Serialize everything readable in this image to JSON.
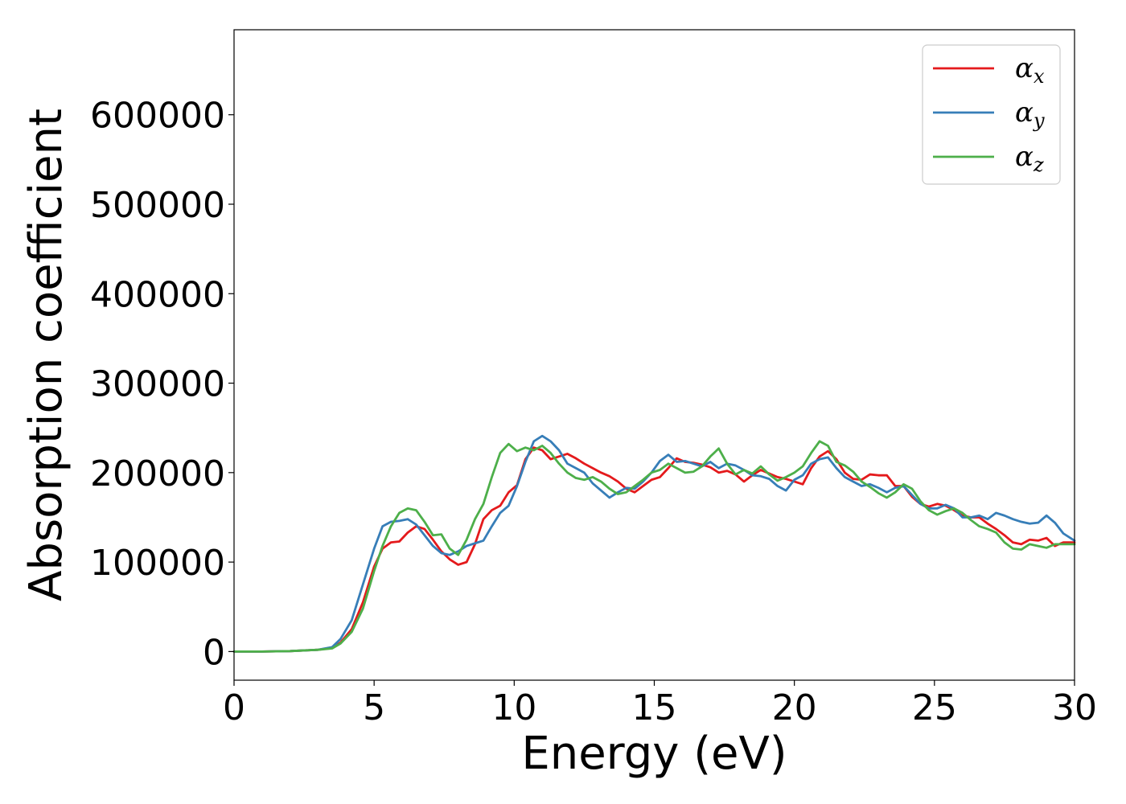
{
  "chart_data": {
    "type": "line",
    "title": "",
    "xlabel": "Energy (eV)",
    "ylabel": "Absorption coefficient",
    "xlim": [
      0,
      30
    ],
    "ylim": [
      -32000,
      695000
    ],
    "xticks": [
      "0",
      "5",
      "10",
      "15",
      "20",
      "25",
      "30"
    ],
    "yticks": [
      "0",
      "100000",
      "200000",
      "300000",
      "400000",
      "500000",
      "600000"
    ],
    "grid": false,
    "legend_position": "top-right",
    "series": [
      {
        "name": "α",
        "subscript": "x",
        "color": "#e41a1c",
        "x": [
          0,
          1,
          2,
          3,
          3.5,
          3.8,
          4.2,
          4.6,
          5.0,
          5.3,
          5.6,
          5.9,
          6.2,
          6.5,
          6.8,
          7.1,
          7.4,
          7.7,
          8.0,
          8.3,
          8.6,
          8.9,
          9.2,
          9.5,
          9.8,
          10.1,
          10.4,
          10.7,
          11.0,
          11.3,
          11.6,
          11.9,
          12.2,
          12.5,
          12.8,
          13.1,
          13.4,
          13.7,
          14.0,
          14.3,
          14.6,
          14.9,
          15.2,
          15.5,
          15.8,
          16.1,
          16.4,
          16.7,
          17.0,
          17.3,
          17.6,
          17.9,
          18.2,
          18.5,
          18.8,
          19.1,
          19.4,
          19.7,
          20.0,
          20.3,
          20.6,
          20.9,
          21.2,
          21.5,
          21.8,
          22.1,
          22.4,
          22.7,
          23.0,
          23.3,
          23.6,
          23.9,
          24.2,
          24.5,
          24.8,
          25.1,
          25.4,
          25.7,
          26.0,
          26.3,
          26.6,
          26.9,
          27.2,
          27.5,
          27.8,
          28.1,
          28.4,
          28.7,
          29.0,
          29.3,
          29.6,
          30.0
        ],
        "y": [
          0,
          0,
          500,
          2000,
          4000,
          10000,
          25000,
          55000,
          95000,
          115000,
          122000,
          123000,
          133000,
          140000,
          137000,
          125000,
          112000,
          103000,
          97000,
          100000,
          120000,
          148000,
          158000,
          163000,
          178000,
          186000,
          215000,
          228000,
          225000,
          215000,
          218000,
          221000,
          216000,
          210000,
          205000,
          200000,
          196000,
          190000,
          182000,
          178000,
          185000,
          192000,
          195000,
          205000,
          216000,
          212000,
          211000,
          209000,
          206000,
          200000,
          202000,
          198000,
          190000,
          197000,
          203000,
          199000,
          195000,
          193000,
          190000,
          187000,
          205000,
          218000,
          224000,
          215000,
          200000,
          193000,
          192000,
          198000,
          197000,
          197000,
          185000,
          185000,
          173000,
          165000,
          162000,
          165000,
          163000,
          158000,
          152000,
          150000,
          150000,
          143000,
          137000,
          130000,
          122000,
          120000,
          125000,
          124000,
          127000,
          118000,
          122000,
          122000
        ]
      },
      {
        "name": "α",
        "subscript": "y",
        "color": "#377eb8",
        "x": [
          0,
          1,
          2,
          3,
          3.5,
          3.8,
          4.2,
          4.6,
          5.0,
          5.3,
          5.6,
          5.9,
          6.2,
          6.5,
          6.8,
          7.1,
          7.4,
          7.7,
          8.0,
          8.3,
          8.6,
          8.9,
          9.2,
          9.5,
          9.8,
          10.1,
          10.4,
          10.7,
          11.0,
          11.3,
          11.6,
          11.9,
          12.2,
          12.5,
          12.8,
          13.1,
          13.4,
          13.7,
          14.0,
          14.3,
          14.6,
          14.9,
          15.2,
          15.5,
          15.8,
          16.1,
          16.4,
          16.7,
          17.0,
          17.3,
          17.6,
          17.9,
          18.2,
          18.5,
          18.8,
          19.1,
          19.4,
          19.7,
          20.0,
          20.3,
          20.6,
          20.9,
          21.2,
          21.5,
          21.8,
          22.1,
          22.4,
          22.7,
          23.0,
          23.3,
          23.6,
          23.9,
          24.2,
          24.5,
          24.8,
          25.1,
          25.4,
          25.7,
          26.0,
          26.3,
          26.6,
          26.9,
          27.2,
          27.5,
          27.8,
          28.1,
          28.4,
          28.7,
          29.0,
          29.3,
          29.6,
          30.0
        ],
        "y": [
          0,
          0,
          500,
          2000,
          5000,
          14000,
          35000,
          75000,
          115000,
          140000,
          145000,
          146000,
          148000,
          142000,
          130000,
          118000,
          110000,
          108000,
          112000,
          118000,
          121000,
          124000,
          140000,
          155000,
          163000,
          185000,
          212000,
          235000,
          241000,
          235000,
          225000,
          210000,
          205000,
          200000,
          188000,
          180000,
          172000,
          178000,
          183000,
          182000,
          190000,
          200000,
          213000,
          220000,
          212000,
          213000,
          210000,
          207000,
          212000,
          205000,
          210000,
          208000,
          203000,
          197000,
          196000,
          193000,
          185000,
          180000,
          192000,
          197000,
          210000,
          215000,
          217000,
          205000,
          195000,
          190000,
          185000,
          187000,
          183000,
          178000,
          183000,
          185000,
          175000,
          165000,
          160000,
          160000,
          164000,
          160000,
          150000,
          150000,
          152000,
          148000,
          155000,
          152000,
          148000,
          145000,
          143000,
          144000,
          152000,
          144000,
          132000,
          124000
        ]
      },
      {
        "name": "α",
        "subscript": "z",
        "color": "#4daf4a",
        "x": [
          0,
          1,
          2,
          3,
          3.5,
          3.8,
          4.2,
          4.6,
          5.0,
          5.3,
          5.6,
          5.9,
          6.2,
          6.5,
          6.8,
          7.1,
          7.4,
          7.7,
          8.0,
          8.3,
          8.6,
          8.9,
          9.2,
          9.5,
          9.8,
          10.1,
          10.4,
          10.7,
          11.0,
          11.3,
          11.6,
          11.9,
          12.2,
          12.5,
          12.8,
          13.1,
          13.4,
          13.7,
          14.0,
          14.3,
          14.6,
          14.9,
          15.2,
          15.5,
          15.8,
          16.1,
          16.4,
          16.7,
          17.0,
          17.3,
          17.6,
          17.9,
          18.2,
          18.5,
          18.8,
          19.1,
          19.4,
          19.7,
          20.0,
          20.3,
          20.6,
          20.9,
          21.2,
          21.5,
          21.8,
          22.1,
          22.4,
          22.7,
          23.0,
          23.3,
          23.6,
          23.9,
          24.2,
          24.5,
          24.8,
          25.1,
          25.4,
          25.7,
          26.0,
          26.3,
          26.6,
          26.9,
          27.2,
          27.5,
          27.8,
          28.1,
          28.4,
          28.7,
          29.0,
          29.3,
          29.6,
          30.0
        ],
        "y": [
          0,
          0,
          500,
          2000,
          3500,
          9000,
          22000,
          48000,
          90000,
          118000,
          140000,
          155000,
          160000,
          158000,
          145000,
          130000,
          131000,
          115000,
          108000,
          125000,
          148000,
          165000,
          195000,
          222000,
          232000,
          224000,
          228000,
          225000,
          230000,
          222000,
          210000,
          200000,
          194000,
          192000,
          195000,
          190000,
          182000,
          176000,
          178000,
          185000,
          192000,
          200000,
          203000,
          210000,
          205000,
          200000,
          201000,
          207000,
          218000,
          227000,
          210000,
          198000,
          203000,
          199000,
          207000,
          198000,
          191000,
          195000,
          200000,
          207000,
          222000,
          235000,
          230000,
          212000,
          208000,
          201000,
          190000,
          184000,
          177000,
          172000,
          178000,
          187000,
          182000,
          168000,
          158000,
          153000,
          157000,
          160000,
          155000,
          147000,
          140000,
          137000,
          133000,
          122000,
          115000,
          114000,
          120000,
          118000,
          116000,
          120000,
          120000,
          120000
        ]
      }
    ]
  }
}
